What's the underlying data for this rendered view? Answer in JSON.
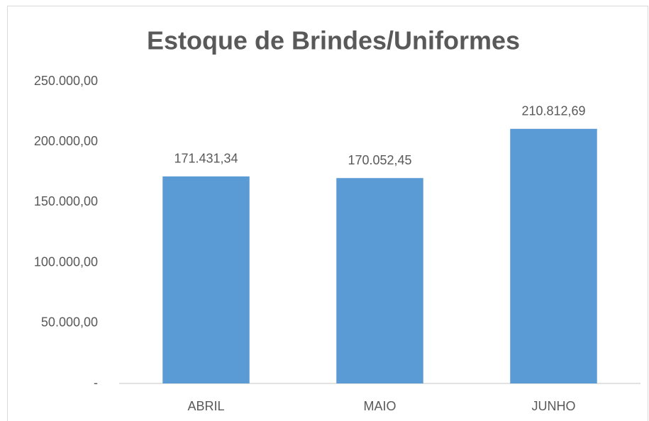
{
  "chart_data": {
    "type": "bar",
    "title": "Estoque de Brindes/Uniformes",
    "categories": [
      "ABRIL",
      "MAIO",
      "JUNHO"
    ],
    "values": [
      171431.34,
      170052.45,
      210812.69
    ],
    "value_labels": [
      "171.431,34",
      "170.052,45",
      "210.812,69"
    ],
    "color": "#5b9bd5",
    "ylim": [
      0,
      250000
    ],
    "yticks": [
      {
        "value": 0,
        "label": "-"
      },
      {
        "value": 50000,
        "label": "50.000,00"
      },
      {
        "value": 100000,
        "label": "100.000,00"
      },
      {
        "value": 150000,
        "label": "150.000,00"
      },
      {
        "value": 200000,
        "label": "200.000,00"
      },
      {
        "value": 250000,
        "label": "250.000,00"
      }
    ],
    "grid": false
  }
}
